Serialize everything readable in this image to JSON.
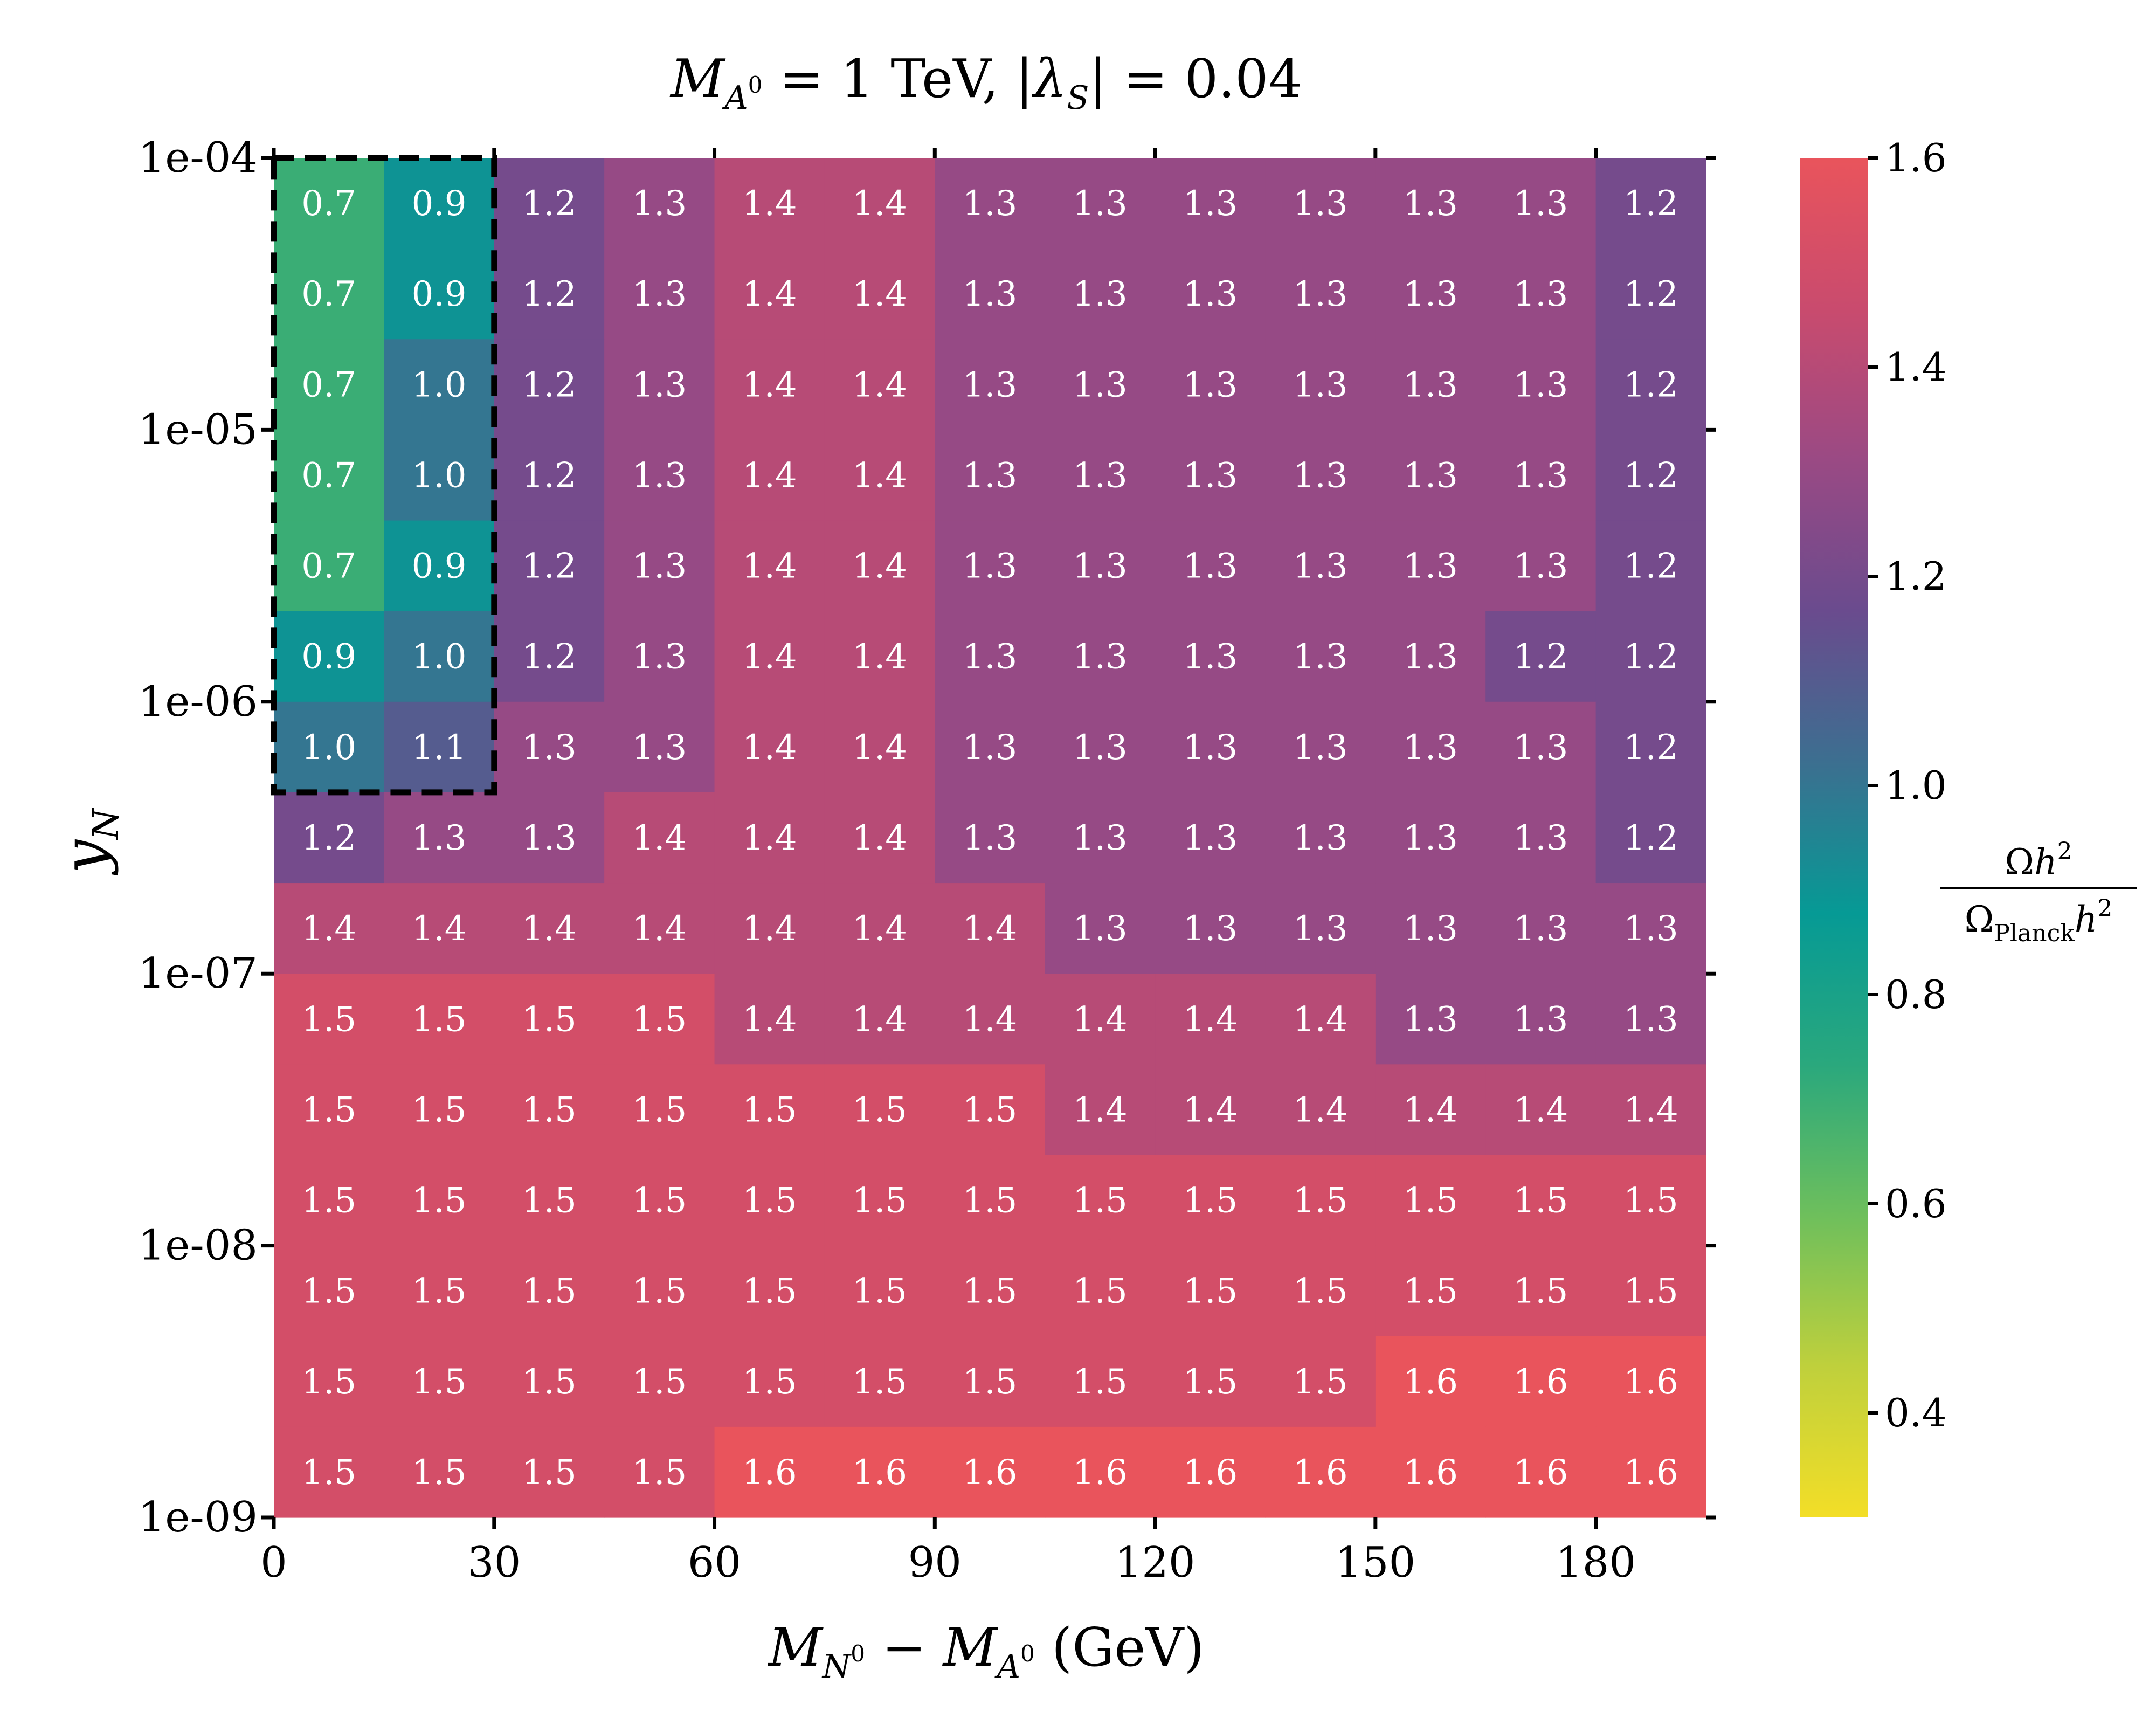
{
  "chart_data": {
    "type": "heatmap",
    "title": "M_{A^0} = 1 TeV, |λ_S| = 0.04",
    "xlabel": "M_{N^0} − M_{A^0} (GeV)",
    "ylabel": "y_N",
    "colorbar_label": "Ωh² / Ω_Planck h²",
    "x_ticks": [
      "0",
      "30",
      "60",
      "90",
      "120",
      "150",
      "180"
    ],
    "x_tick_values": [
      0,
      30,
      60,
      90,
      120,
      150,
      180
    ],
    "xlim": [
      0,
      195
    ],
    "x_cell_width": 15,
    "y_ticks": [
      "1e-04",
      "1e-05",
      "1e-06",
      "1e-07",
      "1e-08",
      "1e-09"
    ],
    "y_tick_exponents": [
      -4,
      -5,
      -6,
      -7,
      -8,
      -9
    ],
    "ylim": [
      1e-09,
      0.0001
    ],
    "y_scale": "log",
    "colorbar_ticks": [
      "1.6",
      "1.4",
      "1.2",
      "1.0",
      "0.8",
      "0.6",
      "0.4"
    ],
    "colorbar_tick_values": [
      1.6,
      1.4,
      1.2,
      1.0,
      0.8,
      0.6,
      0.4
    ],
    "colorbar_range": [
      0.3,
      1.6
    ],
    "colormap": [
      "#f3de27",
      "#bfd03c",
      "#6ebf5c",
      "#2aa87d",
      "#069a95",
      "#3c6f90",
      "#6a4b8e",
      "#9a4a84",
      "#c94b6e",
      "#e9545c"
    ],
    "highlight_region": {
      "x": [
        0,
        30
      ],
      "rows_from_top": 7,
      "style": "dashed"
    },
    "rows": [
      [
        0.7,
        0.9,
        1.2,
        1.3,
        1.4,
        1.4,
        1.3,
        1.3,
        1.3,
        1.3,
        1.3,
        1.3,
        1.2
      ],
      [
        0.7,
        0.9,
        1.2,
        1.3,
        1.4,
        1.4,
        1.3,
        1.3,
        1.3,
        1.3,
        1.3,
        1.3,
        1.2
      ],
      [
        0.7,
        1.0,
        1.2,
        1.3,
        1.4,
        1.4,
        1.3,
        1.3,
        1.3,
        1.3,
        1.3,
        1.3,
        1.2
      ],
      [
        0.7,
        1.0,
        1.2,
        1.3,
        1.4,
        1.4,
        1.3,
        1.3,
        1.3,
        1.3,
        1.3,
        1.3,
        1.2
      ],
      [
        0.7,
        0.9,
        1.2,
        1.3,
        1.4,
        1.4,
        1.3,
        1.3,
        1.3,
        1.3,
        1.3,
        1.3,
        1.2
      ],
      [
        0.9,
        1.0,
        1.2,
        1.3,
        1.4,
        1.4,
        1.3,
        1.3,
        1.3,
        1.3,
        1.3,
        1.2,
        1.2
      ],
      [
        1.0,
        1.1,
        1.3,
        1.3,
        1.4,
        1.4,
        1.3,
        1.3,
        1.3,
        1.3,
        1.3,
        1.3,
        1.2
      ],
      [
        1.2,
        1.3,
        1.3,
        1.4,
        1.4,
        1.4,
        1.3,
        1.3,
        1.3,
        1.3,
        1.3,
        1.3,
        1.2
      ],
      [
        1.4,
        1.4,
        1.4,
        1.4,
        1.4,
        1.4,
        1.4,
        1.3,
        1.3,
        1.3,
        1.3,
        1.3,
        1.3
      ],
      [
        1.5,
        1.5,
        1.5,
        1.5,
        1.4,
        1.4,
        1.4,
        1.4,
        1.4,
        1.4,
        1.3,
        1.3,
        1.3
      ],
      [
        1.5,
        1.5,
        1.5,
        1.5,
        1.5,
        1.5,
        1.5,
        1.4,
        1.4,
        1.4,
        1.4,
        1.4,
        1.4
      ],
      [
        1.5,
        1.5,
        1.5,
        1.5,
        1.5,
        1.5,
        1.5,
        1.5,
        1.5,
        1.5,
        1.5,
        1.5,
        1.5
      ],
      [
        1.5,
        1.5,
        1.5,
        1.5,
        1.5,
        1.5,
        1.5,
        1.5,
        1.5,
        1.5,
        1.5,
        1.5,
        1.5
      ],
      [
        1.5,
        1.5,
        1.5,
        1.5,
        1.5,
        1.5,
        1.5,
        1.5,
        1.5,
        1.5,
        1.6,
        1.6,
        1.6
      ],
      [
        1.5,
        1.5,
        1.5,
        1.5,
        1.6,
        1.6,
        1.6,
        1.6,
        1.6,
        1.6,
        1.6,
        1.6,
        1.6
      ]
    ]
  }
}
